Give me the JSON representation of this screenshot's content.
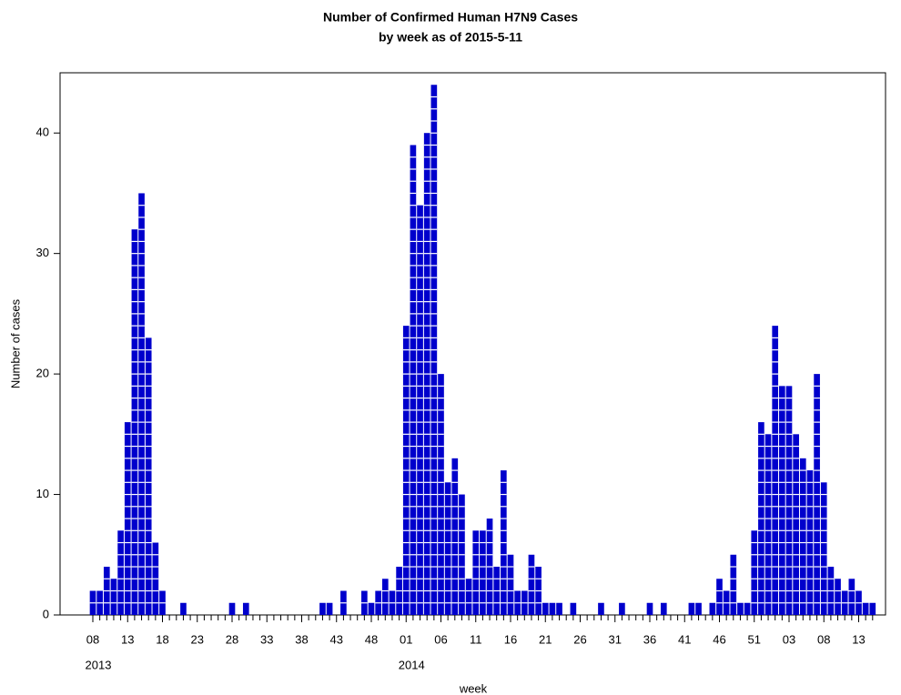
{
  "chart_data": {
    "type": "bar",
    "title": "Number of Confirmed Human H7N9 Cases",
    "subtitle": "by week as of 2015-5-11",
    "x_label": "week",
    "y_label": "Number of cases",
    "categories": [
      "08",
      null,
      null,
      null,
      null,
      "13",
      null,
      null,
      null,
      null,
      "18",
      null,
      null,
      null,
      null,
      "23",
      null,
      null,
      null,
      null,
      "28",
      null,
      null,
      null,
      null,
      "33",
      null,
      null,
      null,
      null,
      "38",
      null,
      null,
      null,
      null,
      "43",
      null,
      null,
      null,
      null,
      "48",
      null,
      null,
      null,
      null,
      "01",
      null,
      null,
      null,
      null,
      "06",
      null,
      null,
      null,
      null,
      "11",
      null,
      null,
      null,
      null,
      "16",
      null,
      null,
      null,
      null,
      "21",
      null,
      null,
      null,
      null,
      "26",
      null,
      null,
      null,
      null,
      "31",
      null,
      null,
      null,
      null,
      "36",
      null,
      null,
      null,
      null,
      "41",
      null,
      null,
      null,
      null,
      "46",
      null,
      null,
      null,
      null,
      "51",
      null,
      null,
      null,
      null,
      "03",
      null,
      null,
      null,
      null,
      "08",
      null,
      null,
      null,
      null,
      "13",
      null,
      null
    ],
    "category_years": [
      "2013",
      null,
      null,
      null,
      null,
      null,
      null,
      null,
      null,
      null,
      null,
      null,
      null,
      null,
      null,
      null,
      null,
      null,
      null,
      null,
      null,
      null,
      null,
      null,
      null,
      null,
      null,
      null,
      null,
      null,
      null,
      null,
      null,
      null,
      null,
      null,
      null,
      null,
      null,
      null,
      null,
      null,
      null,
      null,
      null,
      "2014",
      null,
      null,
      null,
      null,
      null,
      null,
      null,
      null,
      null,
      null,
      null,
      null,
      null,
      null,
      null,
      null,
      null,
      null,
      null,
      null,
      null,
      null,
      null,
      null,
      null,
      null,
      null,
      null,
      null,
      null,
      null,
      null,
      null,
      null,
      null,
      null,
      null,
      null,
      null,
      null,
      null,
      null,
      null,
      null,
      null,
      null,
      null,
      null,
      null,
      null,
      null,
      null,
      null,
      null,
      null,
      null,
      null,
      null,
      null,
      null,
      null,
      null,
      null,
      null,
      null,
      null,
      null
    ],
    "values": [
      2,
      2,
      4,
      3,
      7,
      16,
      32,
      35,
      23,
      6,
      2,
      0,
      0,
      1,
      0,
      0,
      0,
      0,
      0,
      0,
      1,
      0,
      1,
      0,
      0,
      0,
      0,
      0,
      0,
      0,
      0,
      0,
      0,
      1,
      1,
      0,
      2,
      0,
      0,
      2,
      1,
      2,
      3,
      2,
      4,
      24,
      39,
      34,
      40,
      44,
      20,
      11,
      13,
      10,
      3,
      7,
      7,
      8,
      4,
      12,
      5,
      2,
      2,
      5,
      4,
      1,
      1,
      1,
      0,
      1,
      0,
      0,
      0,
      1,
      0,
      0,
      1,
      0,
      0,
      0,
      1,
      0,
      1,
      0,
      0,
      0,
      1,
      1,
      0,
      1,
      3,
      2,
      5,
      1,
      1,
      7,
      16,
      15,
      24,
      19,
      19,
      15,
      13,
      12,
      20,
      11,
      4,
      3,
      2,
      3,
      2,
      1,
      1
    ],
    "color": "#0000cc",
    "ylim": [
      0,
      45
    ],
    "yticks": [
      0,
      10,
      20,
      30,
      40
    ],
    "grid": false
  }
}
